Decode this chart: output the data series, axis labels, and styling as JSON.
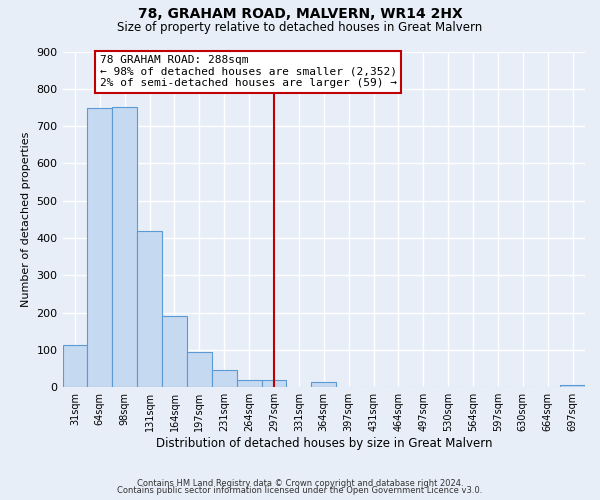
{
  "title": "78, GRAHAM ROAD, MALVERN, WR14 2HX",
  "subtitle": "Size of property relative to detached houses in Great Malvern",
  "xlabel": "Distribution of detached houses by size in Great Malvern",
  "ylabel": "Number of detached properties",
  "bin_labels": [
    "31sqm",
    "64sqm",
    "98sqm",
    "131sqm",
    "164sqm",
    "197sqm",
    "231sqm",
    "264sqm",
    "297sqm",
    "331sqm",
    "364sqm",
    "397sqm",
    "431sqm",
    "464sqm",
    "497sqm",
    "530sqm",
    "564sqm",
    "597sqm",
    "630sqm",
    "664sqm",
    "697sqm"
  ],
  "bar_values": [
    113,
    748,
    750,
    420,
    190,
    95,
    46,
    20,
    20,
    0,
    15,
    0,
    0,
    0,
    0,
    0,
    0,
    0,
    0,
    0,
    5
  ],
  "bar_color": "#c5d9f1",
  "bar_edge_color": "#5b9bd5",
  "vline_x": 8.0,
  "vline_color": "#c00000",
  "ylim": [
    0,
    900
  ],
  "yticks": [
    0,
    100,
    200,
    300,
    400,
    500,
    600,
    700,
    800,
    900
  ],
  "annotation_title": "78 GRAHAM ROAD: 288sqm",
  "annotation_line1": "← 98% of detached houses are smaller (2,352)",
  "annotation_line2": "2% of semi-detached houses are larger (59) →",
  "annotation_box_color": "#c00000",
  "footer_line1": "Contains HM Land Registry data © Crown copyright and database right 2024.",
  "footer_line2": "Contains public sector information licensed under the Open Government Licence v3.0.",
  "background_color": "#e8eef8",
  "grid_color": "#d0d8e8"
}
